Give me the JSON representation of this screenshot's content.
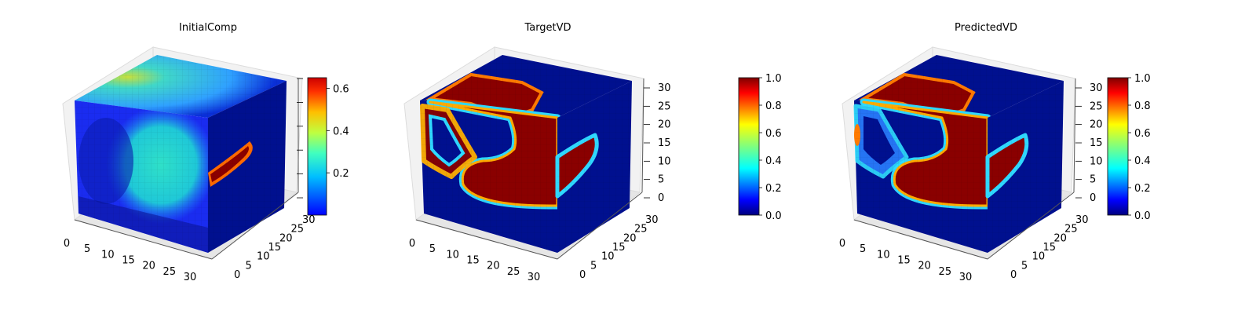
{
  "figure": {
    "panels": 3
  },
  "chart_data": [
    {
      "type": "heatmap",
      "subtype": "3d-voxel-volume",
      "title": "InitialComp",
      "x_ticks": [
        0,
        5,
        10,
        15,
        20,
        25,
        30
      ],
      "y_ticks": [
        0,
        5,
        10,
        15,
        20,
        25,
        30
      ],
      "z_ticks": [],
      "axis_range": [
        0,
        32
      ],
      "colormap": "jet",
      "colorbar": {
        "min": 0.0,
        "max": 0.65,
        "ticks": [
          0.2,
          0.4,
          0.6
        ],
        "labels": [
          "0.2",
          "0.4",
          "0.6"
        ]
      },
      "grid": true,
      "legend": "none"
    },
    {
      "type": "heatmap",
      "subtype": "3d-voxel-volume",
      "title": "TargetVD",
      "x_ticks": [
        0,
        5,
        10,
        15,
        20,
        25,
        30
      ],
      "y_ticks": [
        0,
        5,
        10,
        15,
        20,
        25,
        30
      ],
      "z_ticks": [
        0,
        5,
        10,
        15,
        20,
        25,
        30
      ],
      "axis_range": [
        0,
        32
      ],
      "colormap": "jet",
      "colorbar": {
        "min": 0.0,
        "max": 1.0,
        "ticks": [
          0.0,
          0.2,
          0.4,
          0.6,
          0.8,
          1.0
        ],
        "labels": [
          "0.0",
          "0.2",
          "0.4",
          "0.6",
          "0.8",
          "1.0"
        ]
      },
      "grid": true,
      "legend": "none"
    },
    {
      "type": "heatmap",
      "subtype": "3d-voxel-volume",
      "title": "PredictedVD",
      "x_ticks": [
        0,
        5,
        10,
        15,
        20,
        25,
        30
      ],
      "y_ticks": [
        0,
        5,
        10,
        15,
        20,
        25,
        30
      ],
      "z_ticks": [
        0,
        5,
        10,
        15,
        20,
        25,
        30
      ],
      "axis_range": [
        0,
        32
      ],
      "colormap": "jet",
      "colorbar": {
        "min": 0.0,
        "max": 1.0,
        "ticks": [
          0.0,
          0.2,
          0.4,
          0.6,
          0.8,
          1.0
        ],
        "labels": [
          "0.0",
          "0.2",
          "0.4",
          "0.6",
          "0.8",
          "1.0"
        ]
      },
      "grid": true,
      "legend": "none"
    }
  ],
  "colors": {
    "jet_stops": [
      "#00007f",
      "#0000ff",
      "#007fff",
      "#00ffff",
      "#7fff7f",
      "#ffff00",
      "#ff7f00",
      "#ff0000",
      "#7f0000"
    ],
    "pane_face": "#f2f2f2",
    "pane_edge": "#dddddd",
    "axis_text": "#000000"
  }
}
